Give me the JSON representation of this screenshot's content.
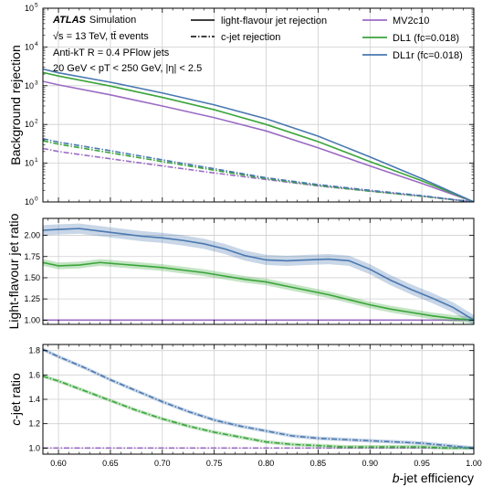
{
  "chart_data": {
    "type": "line",
    "xlabel_italic": "b",
    "xlabel_rest": "-jet efficiency",
    "xlim": [
      0.585,
      1.0
    ],
    "x_ticks": [
      "0.60",
      "0.65",
      "0.70",
      "0.75",
      "0.80",
      "0.85",
      "0.90",
      "0.95",
      "1.00"
    ],
    "colors": {
      "MV2c10": "#9b6bc4",
      "DL1": "#3aa53a",
      "DL1r": "#4a78b0"
    },
    "annotations": {
      "atlas": "ATLAS",
      "simulation": "Simulation",
      "line2": "√s = 13 TeV, tt̄ events",
      "line3": "Anti-kT R = 0.4 PFlow jets",
      "line4": "20 GeV < pT < 250 GeV, |η| < 2.5"
    },
    "legend": {
      "light": "light-flavour jet rejection",
      "cjet": "c-jet rejection",
      "mv2": "MV2c10",
      "dl1": "DL1 (fc=0.018)",
      "dl1r": "DL1r (fc=0.018)"
    },
    "panels": [
      {
        "name": "rejection",
        "ylabel": "Background rejection",
        "yscale": "log",
        "ylim": [
          1,
          100000
        ],
        "y_ticks": [
          "1",
          "10",
          "100",
          "1000",
          "10000",
          "100000"
        ],
        "series": [
          {
            "name": "MV2c10",
            "kind": "light",
            "x": [
              0.585,
              0.6,
              0.65,
              0.7,
              0.75,
              0.8,
              0.85,
              0.9,
              0.95,
              1.0
            ],
            "y": [
              1300,
              1050,
              580,
              300,
              150,
              68,
              25,
              8.5,
              3.0,
              1.0
            ]
          },
          {
            "name": "DL1",
            "kind": "light",
            "x": [
              0.585,
              0.6,
              0.65,
              0.7,
              0.75,
              0.8,
              0.85,
              0.9,
              0.95,
              1.0
            ],
            "y": [
              2200,
              1780,
              980,
              500,
              240,
              100,
              36,
              11,
              3.5,
              1.0
            ]
          },
          {
            "name": "DL1r",
            "kind": "light",
            "x": [
              0.585,
              0.6,
              0.65,
              0.7,
              0.75,
              0.8,
              0.85,
              0.9,
              0.95,
              1.0
            ],
            "y": [
              2700,
              2150,
              1230,
              650,
              320,
              140,
              50,
              14.5,
              4.0,
              1.0
            ]
          },
          {
            "name": "MV2c10",
            "kind": "c",
            "x": [
              0.585,
              0.6,
              0.65,
              0.7,
              0.75,
              0.8,
              0.85,
              0.9,
              0.95,
              1.0
            ],
            "y": [
              24,
              20,
              13,
              8.5,
              5.6,
              3.8,
              2.6,
              1.9,
              1.4,
              1.0
            ]
          },
          {
            "name": "DL1",
            "kind": "c",
            "x": [
              0.585,
              0.6,
              0.65,
              0.7,
              0.75,
              0.8,
              0.85,
              0.9,
              0.95,
              1.0
            ],
            "y": [
              38,
              31,
              18.5,
              11,
              6.6,
              4.0,
              2.65,
              1.9,
              1.4,
              1.0
            ]
          },
          {
            "name": "DL1r",
            "kind": "c",
            "x": [
              0.585,
              0.6,
              0.65,
              0.7,
              0.75,
              0.8,
              0.85,
              0.9,
              0.95,
              1.0
            ],
            "y": [
              43,
              35,
              21,
              12.2,
              7.2,
              4.2,
              2.8,
              2.0,
              1.45,
              1.0
            ]
          }
        ]
      },
      {
        "name": "light-ratio",
        "ylabel": "Light-flavour jet ratio",
        "yscale": "linear",
        "ylim": [
          0.95,
          2.2
        ],
        "y_ticks": [
          "1.00",
          "1.25",
          "1.50",
          "1.75",
          "2.00"
        ],
        "series": [
          {
            "name": "MV2c10",
            "kind": "light",
            "x": [
              0.585,
              1.0
            ],
            "y": [
              1.0,
              1.0
            ],
            "band": 0.0
          },
          {
            "name": "DL1",
            "kind": "light",
            "x": [
              0.585,
              0.6,
              0.62,
              0.64,
              0.66,
              0.68,
              0.7,
              0.72,
              0.74,
              0.76,
              0.78,
              0.8,
              0.82,
              0.84,
              0.86,
              0.88,
              0.9,
              0.92,
              0.94,
              0.96,
              0.98,
              1.0
            ],
            "y": [
              1.68,
              1.64,
              1.65,
              1.68,
              1.66,
              1.64,
              1.62,
              1.59,
              1.56,
              1.52,
              1.48,
              1.45,
              1.4,
              1.35,
              1.3,
              1.24,
              1.18,
              1.13,
              1.09,
              1.05,
              1.02,
              1.0
            ],
            "band": 0.04
          },
          {
            "name": "DL1r",
            "kind": "light",
            "x": [
              0.585,
              0.6,
              0.62,
              0.64,
              0.66,
              0.68,
              0.7,
              0.72,
              0.74,
              0.76,
              0.78,
              0.8,
              0.82,
              0.84,
              0.86,
              0.88,
              0.9,
              0.92,
              0.94,
              0.96,
              0.98,
              1.0
            ],
            "y": [
              2.06,
              2.07,
              2.08,
              2.05,
              2.02,
              1.99,
              1.97,
              1.94,
              1.9,
              1.84,
              1.76,
              1.71,
              1.7,
              1.71,
              1.72,
              1.7,
              1.6,
              1.47,
              1.36,
              1.26,
              1.15,
              1.0
            ],
            "band": 0.06
          }
        ]
      },
      {
        "name": "c-ratio",
        "ylabel_italic": "c",
        "ylabel_rest": "-jet ratio",
        "yscale": "linear",
        "ylim": [
          0.95,
          1.85
        ],
        "y_ticks": [
          "1.0",
          "1.2",
          "1.4",
          "1.6",
          "1.8"
        ],
        "series": [
          {
            "name": "MV2c10",
            "kind": "c",
            "x": [
              0.585,
              1.0
            ],
            "y": [
              1.0,
              1.0
            ],
            "band": 0.0
          },
          {
            "name": "DL1",
            "kind": "c",
            "x": [
              0.585,
              0.6,
              0.625,
              0.65,
              0.675,
              0.7,
              0.725,
              0.75,
              0.775,
              0.8,
              0.825,
              0.85,
              0.875,
              0.9,
              0.925,
              0.95,
              0.975,
              1.0
            ],
            "y": [
              1.59,
              1.55,
              1.47,
              1.39,
              1.31,
              1.24,
              1.18,
              1.13,
              1.09,
              1.05,
              1.03,
              1.02,
              1.01,
              1.01,
              1.01,
              1.01,
              1.0,
              1.0
            ],
            "band": 0.015
          },
          {
            "name": "DL1r",
            "kind": "c",
            "x": [
              0.585,
              0.6,
              0.625,
              0.65,
              0.675,
              0.7,
              0.725,
              0.75,
              0.775,
              0.8,
              0.825,
              0.85,
              0.875,
              0.9,
              0.925,
              0.95,
              0.975,
              1.0
            ],
            "y": [
              1.81,
              1.75,
              1.66,
              1.56,
              1.47,
              1.38,
              1.3,
              1.23,
              1.18,
              1.14,
              1.1,
              1.08,
              1.07,
              1.06,
              1.05,
              1.04,
              1.02,
              1.0
            ],
            "band": 0.015
          }
        ]
      }
    ]
  }
}
